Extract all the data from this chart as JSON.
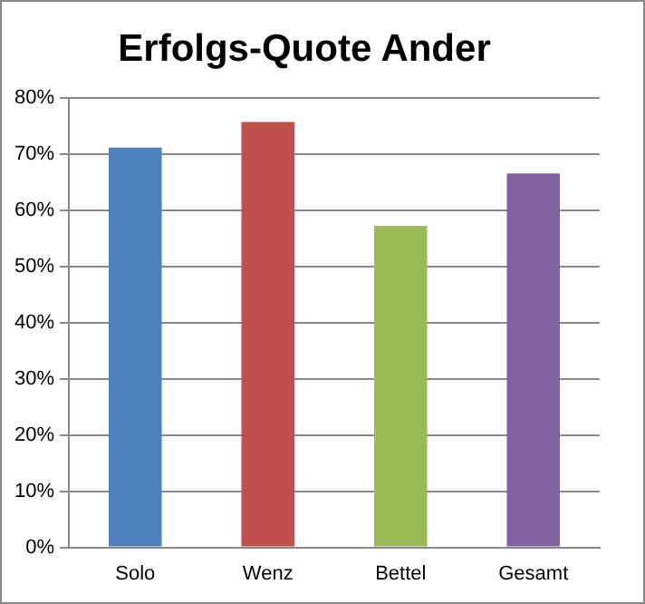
{
  "chart_data": {
    "type": "bar",
    "title": "Erfolgs-Quote Ander",
    "categories": [
      "Solo",
      "Wenz",
      "Bettel",
      "Gesamt"
    ],
    "values": [
      71.2,
      75.8,
      57.3,
      66.6
    ],
    "colors": [
      "#4f81bd",
      "#c0504d",
      "#9bbb59",
      "#8064a2"
    ],
    "ylim": [
      0,
      80
    ],
    "yticks": [
      {
        "value": 0,
        "label": "0%"
      },
      {
        "value": 10,
        "label": "10%"
      },
      {
        "value": 20,
        "label": "20%"
      },
      {
        "value": 30,
        "label": "30%"
      },
      {
        "value": 40,
        "label": "40%"
      },
      {
        "value": 50,
        "label": "50%"
      },
      {
        "value": 60,
        "label": "60%"
      },
      {
        "value": 70,
        "label": "70%"
      },
      {
        "value": 80,
        "label": "80%"
      }
    ],
    "grid": "y",
    "legend": false
  }
}
